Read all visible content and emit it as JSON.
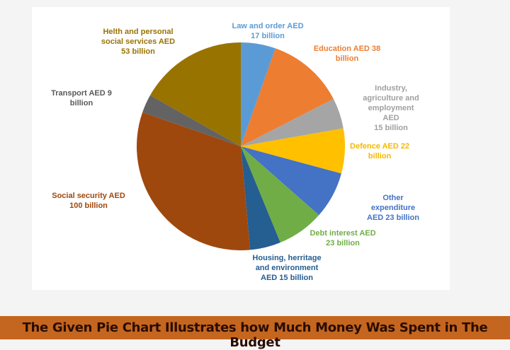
{
  "banner": {
    "title": "The Given Pie Chart Illustrates how Much Money Was Spent in The Budget"
  },
  "chart_data": {
    "type": "pie",
    "title": "",
    "unit": "AED billion",
    "start": "12 o'clock, clockwise",
    "slices": [
      {
        "label": "Law and order AED\n17 billion",
        "value": 17,
        "color": "#5b9bd5"
      },
      {
        "label": "Education AED 38\nbillion",
        "value": 38,
        "color": "#ed7d31"
      },
      {
        "label": "Industry, agriculture and\nemployment AED\n15 billion",
        "value": 15,
        "color": "#a5a5a5"
      },
      {
        "label": "Defence AED 22\nbillion",
        "value": 22,
        "color": "#ffc000"
      },
      {
        "label": "Other expenditure\nAED 23 billion",
        "value": 23,
        "color": "#4472c4"
      },
      {
        "label": "Debt interest AED\n23 billion",
        "value": 23,
        "color": "#70ad47"
      },
      {
        "label": "Housing, herritage\nand environment\nAED 15 billion",
        "value": 15,
        "color": "#255e91"
      },
      {
        "label": "Social security AED\n100 billion",
        "value": 100,
        "color": "#9e480e"
      },
      {
        "label": "Transport AED 9\nbillion",
        "value": 9,
        "color": "#636363"
      },
      {
        "label": "Helth and personal\nsocial services AED\n53 billion",
        "value": 53,
        "color": "#997300"
      }
    ]
  }
}
